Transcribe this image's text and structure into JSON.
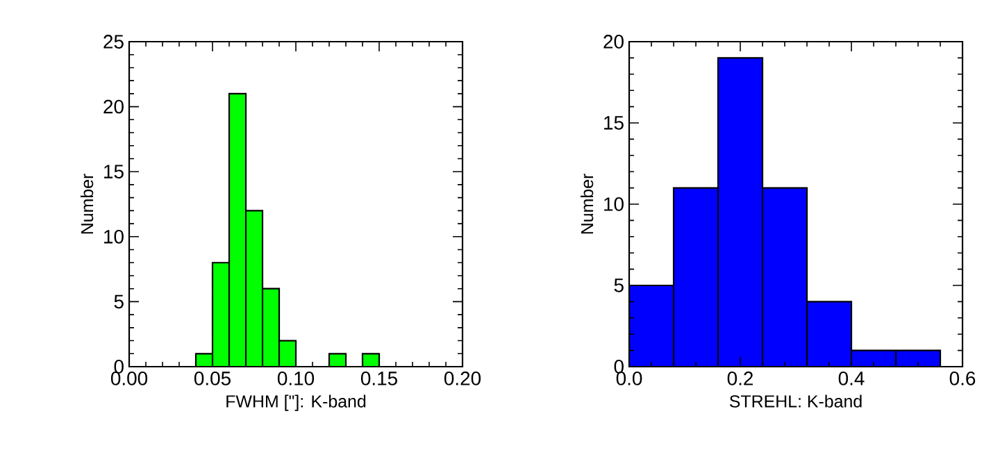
{
  "chart_data": [
    {
      "type": "histogram",
      "xlabel": "FWHM [\"]: K-band",
      "ylabel": "Number",
      "bins": [
        0.04,
        0.05,
        0.06,
        0.07,
        0.08,
        0.09,
        0.1,
        0.11,
        0.12,
        0.13,
        0.14,
        0.15
      ],
      "values": [
        1,
        8,
        21,
        12,
        6,
        2,
        0,
        0,
        1,
        0,
        1
      ],
      "color": "#00ff00",
      "xlim": [
        0,
        0.2
      ],
      "ylim": [
        0,
        25
      ],
      "xticks": [
        {
          "value": 0,
          "label": "0.00"
        },
        {
          "value": 0.05,
          "label": "0.05"
        },
        {
          "value": 0.1,
          "label": "0.10"
        },
        {
          "value": 0.15,
          "label": "0.15"
        },
        {
          "value": 0.2,
          "label": "0.20"
        }
      ],
      "yticks": [
        0,
        5,
        10,
        15,
        20,
        25
      ]
    },
    {
      "type": "histogram",
      "xlabel": "STREHL: K-band",
      "ylabel": "Number",
      "bins": [
        0,
        0.08,
        0.16,
        0.24,
        0.32,
        0.4,
        0.48,
        0.56
      ],
      "values": [
        5,
        11,
        19,
        11,
        4,
        1,
        1
      ],
      "color": "#0000ff",
      "xlim": [
        0,
        0.6
      ],
      "ylim": [
        0,
        20
      ],
      "xticks": [
        {
          "value": 0,
          "label": "0.0"
        },
        {
          "value": 0.2,
          "label": "0.2"
        },
        {
          "value": 0.4,
          "label": "0.4"
        },
        {
          "value": 0.6,
          "label": "0.6"
        }
      ],
      "yticks": [
        0,
        5,
        10,
        15,
        20
      ]
    }
  ]
}
